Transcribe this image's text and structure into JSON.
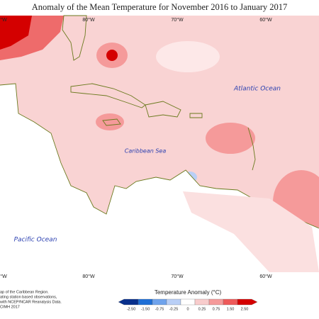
{
  "title": "Anomaly of the Mean Temperature for November 2016 to January 2017",
  "top_labels": [
    "°W",
    "80°W",
    "70°W",
    "60°W"
  ],
  "bottom_labels": [
    "°W",
    "80°W",
    "70°W",
    "60°W"
  ],
  "regions": [
    "Atlantic Ocean",
    "Caribbean Sea",
    "Pacific Ocean"
  ],
  "notes": [
    "ap of the Caribbean Region.",
    "ating station based observations,",
    "with NCEP/NCAR Reanalysis Data.",
    "CIMH 2017"
  ],
  "legend": {
    "title": "Temperature Anomaly (°C)",
    "labels": [
      "-2.50",
      "-1.50",
      "-0.75",
      "-0.25",
      "0",
      "0.25",
      "0.75",
      "1.50",
      "2.50"
    ],
    "colors": [
      "#08308c",
      "#1f6fd6",
      "#6fa3ec",
      "#b9cff6",
      "#ffffff",
      "#f8cccc",
      "#f59a9a",
      "#ee5a5a",
      "#d40000"
    ]
  }
}
